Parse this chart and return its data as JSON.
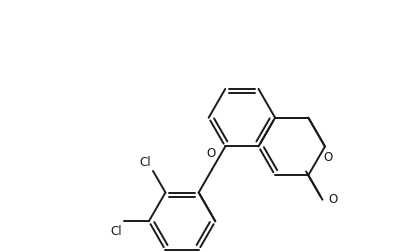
{
  "bg_color": "#ffffff",
  "line_color": "#1a1a1a",
  "line_width": 1.4,
  "font_size": 8.5,
  "label_color": "#1a1a1a",
  "xlim": [
    -0.5,
    10.5
  ],
  "ylim": [
    -0.5,
    7.0
  ],
  "figsize": [
    4.04,
    2.52
  ],
  "dpi": 100
}
